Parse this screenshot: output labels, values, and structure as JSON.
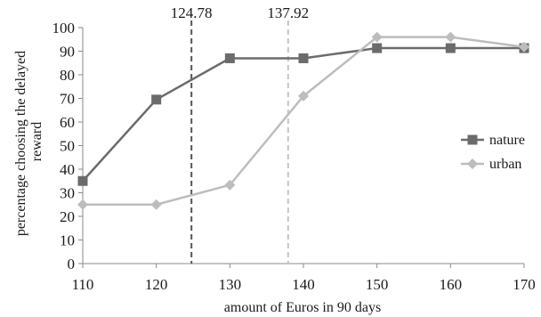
{
  "chart_data": {
    "type": "line",
    "title": "",
    "xlabel": "amount of Euros in 90 days",
    "ylabel_lines": [
      "percentage choosing the delayed",
      "reward"
    ],
    "xlim": [
      110,
      170
    ],
    "ylim": [
      0,
      100
    ],
    "x": [
      110,
      120,
      130,
      140,
      150,
      160,
      170
    ],
    "xticks": [
      110,
      120,
      130,
      140,
      150,
      160,
      170
    ],
    "yticks": [
      0,
      10,
      20,
      30,
      40,
      50,
      60,
      70,
      80,
      90,
      100
    ],
    "grid": false,
    "legend_position": "right",
    "series": [
      {
        "name": "nature",
        "marker": "square",
        "color": "#6b6b6b",
        "values": [
          35,
          69.5,
          87,
          87,
          91.3,
          91.3,
          91.3
        ]
      },
      {
        "name": "urban",
        "marker": "diamond",
        "color": "#bdbdbd",
        "values": [
          25,
          25,
          33.3,
          71,
          96,
          96,
          91.8
        ]
      }
    ],
    "reference_lines": [
      {
        "label": "124.78",
        "x": 124.78,
        "color": "#555555",
        "style": "dashed"
      },
      {
        "label": "137.92",
        "x": 137.92,
        "color": "#c4c4c4",
        "style": "dashed"
      }
    ]
  }
}
